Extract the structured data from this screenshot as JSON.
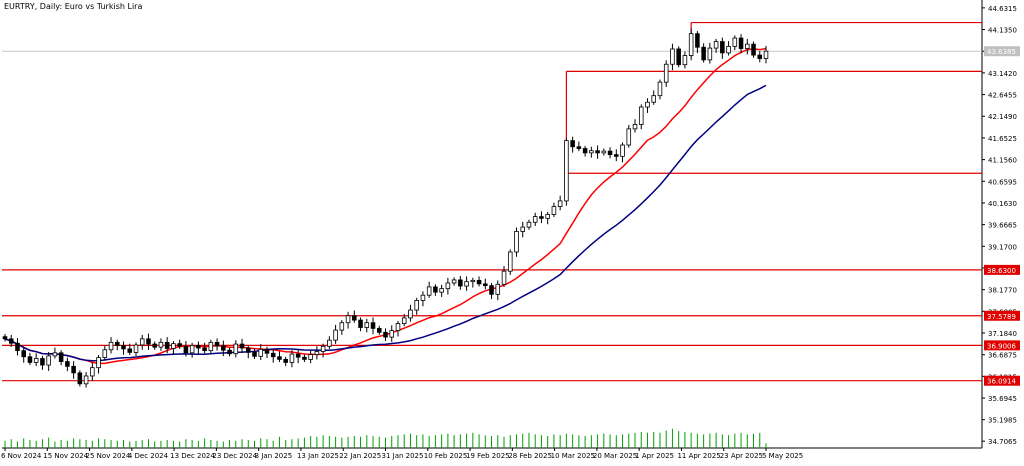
{
  "title": "EURTRY, Daily:  Euro vs Turkish Lira",
  "colors": {
    "background": "#ffffff",
    "candle": "#000000",
    "ma_fast": "#ff0000",
    "ma_slow": "#000080",
    "hline": "#e00000",
    "volume": "#00a000",
    "grid": "#c8c8c8",
    "current_label_bg": "#c0c0c0",
    "hline_label_bg": "#e00000"
  },
  "chart_data": {
    "type": "candlestick",
    "x_ticks": [
      "6 Nov 2024",
      "15 Nov 2024",
      "25 Nov 2024",
      "4 Dec 2024",
      "13 Dec 2024",
      "23 Dec 2024",
      "3 Jan 2025",
      "13 Jan 2025",
      "22 Jan 2025",
      "31 Jan 2025",
      "10 Feb 2025",
      "19 Feb 2025",
      "28 Feb 2025",
      "10 Mar 2025",
      "20 Mar 2025",
      "1 Apr 2025",
      "11 Apr 2025",
      "23 Apr 2025",
      "5 May 2025"
    ],
    "y_ticks": [
      34.7065,
      35.1985,
      35.6945,
      36.1915,
      36.6875,
      37.184,
      37.6805,
      38.177,
      38.673,
      39.17,
      39.6665,
      40.163,
      40.6595,
      41.156,
      41.6525,
      42.149,
      42.6455,
      43.142,
      43.6385,
      44.135,
      44.6315
    ],
    "y_range": [
      34.55,
      44.72
    ],
    "current_price": 43.6385,
    "horizontal_levels": [
      {
        "value": 44.295,
        "label": ""
      },
      {
        "value": 43.177,
        "label": ""
      },
      {
        "value": 40.843,
        "label": ""
      },
      {
        "value": 38.63,
        "label": "38.6300"
      },
      {
        "value": 37.5789,
        "label": "37.5789"
      },
      {
        "value": 36.9006,
        "label": "36.9006"
      },
      {
        "value": 36.0914,
        "label": "36.0914"
      }
    ],
    "closes": [
      37.05,
      36.95,
      36.78,
      36.64,
      36.51,
      36.6,
      36.45,
      36.66,
      36.73,
      36.53,
      36.42,
      36.27,
      36.02,
      36.2,
      36.39,
      36.62,
      36.8,
      36.97,
      36.9,
      36.82,
      36.74,
      36.91,
      37.05,
      36.93,
      36.86,
      36.97,
      36.83,
      36.94,
      36.88,
      36.73,
      36.9,
      36.84,
      36.78,
      36.97,
      36.89,
      36.79,
      36.71,
      36.93,
      36.84,
      36.74,
      36.65,
      36.81,
      36.72,
      36.64,
      36.58,
      36.51,
      36.7,
      36.63,
      36.58,
      36.69,
      36.76,
      36.88,
      37.02,
      37.25,
      37.42,
      37.58,
      37.48,
      37.31,
      37.42,
      37.29,
      37.2,
      37.09,
      37.24,
      37.4,
      37.53,
      37.71,
      37.93,
      38.05,
      38.24,
      38.12,
      38.2,
      38.33,
      38.4,
      38.26,
      38.36,
      38.39,
      38.31,
      38.27,
      38.07,
      38.3,
      38.6,
      39.04,
      39.51,
      39.61,
      39.72,
      39.85,
      39.81,
      39.9,
      40.08,
      40.21,
      41.59,
      41.45,
      41.41,
      41.31,
      41.36,
      41.31,
      41.35,
      41.27,
      41.23,
      41.49,
      41.86,
      41.96,
      42.36,
      42.47,
      42.62,
      42.93,
      43.34,
      43.69,
      43.33,
      43.54,
      44.04,
      43.73,
      43.44,
      43.71,
      43.86,
      43.6,
      43.75,
      43.94,
      43.7,
      43.8,
      43.55,
      43.47,
      43.64
    ],
    "volumes": [
      0.45,
      0.55,
      0.4,
      0.6,
      0.5,
      0.45,
      0.55,
      0.65,
      0.4,
      0.5,
      0.45,
      0.6,
      0.55,
      0.5,
      0.45,
      0.6,
      0.55,
      0.5,
      0.45,
      0.5,
      0.4,
      0.45,
      0.5,
      0.55,
      0.4,
      0.45,
      0.5,
      0.45,
      0.4,
      0.55,
      0.5,
      0.45,
      0.6,
      0.5,
      0.45,
      0.4,
      0.5,
      0.45,
      0.55,
      0.5,
      0.45,
      0.6,
      0.55,
      0.45,
      0.7,
      0.5,
      0.55,
      0.6,
      0.65,
      0.75,
      0.7,
      0.8,
      0.75,
      0.7,
      0.65,
      0.7,
      0.75,
      0.7,
      0.8,
      0.75,
      0.7,
      0.65,
      0.75,
      0.8,
      0.85,
      0.9,
      0.8,
      0.85,
      0.75,
      0.8,
      0.85,
      0.9,
      0.8,
      0.85,
      0.9,
      0.95,
      0.85,
      0.8,
      0.75,
      0.8,
      0.7,
      0.8,
      0.85,
      0.9,
      0.95,
      0.85,
      0.8,
      0.75,
      0.85,
      0.8,
      0.9,
      0.85,
      0.8,
      0.75,
      0.8,
      0.85,
      0.9,
      0.85,
      0.8,
      0.85,
      0.9,
      0.95,
      1.0,
      0.95,
      1.0,
      0.95,
      1.1,
      1.2,
      1.05,
      1.0,
      0.95,
      0.9,
      0.85,
      0.9,
      0.95,
      0.85,
      0.8,
      0.9,
      0.95,
      0.85,
      0.9,
      0.95,
      0.3
    ]
  }
}
